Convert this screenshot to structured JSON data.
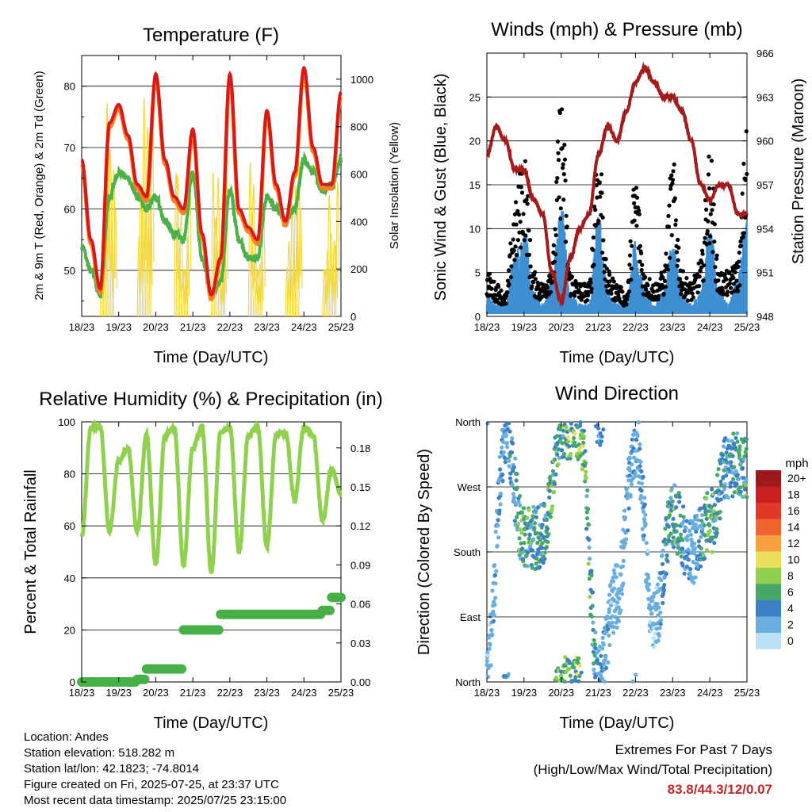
{
  "colors": {
    "temp_2m": "#d7191c",
    "temp_9m": "#f4821f",
    "dewpoint": "#4cb148",
    "solar": "#f2d843",
    "gust": "#000000",
    "sonic_wind": "#3f8fd2",
    "pressure": "#a31c1c",
    "rh": "#8fd14f",
    "precip": "#47b047"
  },
  "x_ticks": [
    "18/23",
    "19/23",
    "20/23",
    "21/23",
    "22/23",
    "23/23",
    "24/23",
    "25/23"
  ],
  "panels": {
    "temperature": {
      "title": "Temperature (F)",
      "xlabel": "Time (Day/UTC)",
      "ylabel_left": "2m & 9m T (Red, Orange) & 2m Td (Green)",
      "ylabel_right": "Solar Insolation (Yellow)",
      "left_ticks": [
        "50",
        "60",
        "70",
        "80"
      ],
      "right_ticks": [
        "0",
        "200",
        "400",
        "600",
        "800",
        "1000"
      ]
    },
    "winds": {
      "title": "Winds (mph) & Pressure (mb)",
      "xlabel": "Time (Day/UTC)",
      "ylabel_left": "Sonic Wind & Gust (Blue, Black)",
      "ylabel_right": "Station Pressure (Maroon)",
      "left_ticks": [
        "0",
        "5",
        "10",
        "15",
        "20",
        "25"
      ],
      "right_ticks": [
        "948",
        "951",
        "954",
        "957",
        "960",
        "963",
        "966"
      ]
    },
    "humidity": {
      "title": "Relative Humidity (%) & Precipitation (in)",
      "xlabel": "Time (Day/UTC)",
      "ylabel_left": "Percent & Total Rainfall",
      "left_ticks": [
        "0",
        "20",
        "40",
        "60",
        "80",
        "100"
      ],
      "right_ticks": [
        "0.00",
        "0.03",
        "0.06",
        "0.09",
        "0.12",
        "0.15",
        "0.18"
      ]
    },
    "direction": {
      "title": "Wind Direction",
      "xlabel": "Time (Day/UTC)",
      "ylabel_left": "Direction (Colored By Speed)",
      "left_ticks": [
        "North",
        "East",
        "South",
        "West",
        "North"
      ],
      "colorbar_title": "mph",
      "colorbar_labels": [
        "20+",
        "18",
        "16",
        "14",
        "12",
        "10",
        "8",
        "6",
        "4",
        "2",
        "0"
      ],
      "colorbar_colors": [
        "#9e1a1a",
        "#c8201e",
        "#e2382a",
        "#f0652e",
        "#f8a040",
        "#ece05a",
        "#8fd14f",
        "#46a866",
        "#3b80c4",
        "#6aaee0",
        "#b9e0f4"
      ]
    }
  },
  "info": {
    "location": "Location: Andes",
    "elevation": "Station elevation: 518.282 m",
    "latlon": "Station lat/lon: 42.1823; -74.8014",
    "created": "Figure created on Fri, 2025-07-25, at 23:37 UTC",
    "recent": "Most recent data timestamp: 2025/07/25 23:15:00"
  },
  "extremes": {
    "title": "Extremes For Past 7 Days",
    "subtitle": "(High/Low/Max Wind/Total Precipitation)",
    "values": "83.8/44.3/12/0.07"
  },
  "chart_data": [
    {
      "type": "line",
      "x": [
        0,
        0.25,
        0.5,
        0.75,
        1,
        1.25,
        1.5,
        1.75,
        2,
        2.25,
        2.5,
        2.75,
        3,
        3.25,
        3.5,
        3.75,
        4,
        4.25,
        4.5,
        4.75,
        5,
        5.25,
        5.5,
        5.75,
        6,
        6.25,
        6.5,
        6.75,
        7
      ],
      "xlim": [
        0,
        7
      ],
      "ylim": [
        42.5,
        85
      ],
      "y2lim": [
        0,
        1100
      ],
      "series": [
        {
          "name": "2m T",
          "values": [
            68,
            55,
            47,
            74,
            77,
            72,
            64,
            62,
            82,
            68,
            62,
            60,
            73,
            56,
            46,
            52,
            82,
            60,
            57,
            55,
            76,
            64,
            58,
            66,
            83,
            70,
            64,
            64,
            79
          ]
        },
        {
          "name": "2m Td",
          "values": [
            54,
            50,
            46,
            62,
            66,
            65,
            62,
            60,
            62,
            58,
            56,
            55,
            66,
            52,
            46,
            48,
            63,
            55,
            52,
            52,
            62,
            60,
            58,
            60,
            68,
            66,
            63,
            64,
            68
          ]
        },
        {
          "name": "Solar",
          "values": [
            0,
            0,
            0,
            850,
            400,
            0,
            0,
            1000,
            900,
            0,
            0,
            0,
            950,
            0,
            0,
            0,
            1050,
            0,
            0,
            0,
            800,
            0,
            0,
            600,
            850,
            0,
            0,
            500,
            700
          ]
        }
      ]
    },
    {
      "type": "line",
      "x": [
        0,
        0.25,
        0.5,
        0.75,
        1,
        1.25,
        1.5,
        1.75,
        2,
        2.25,
        2.5,
        2.75,
        3,
        3.25,
        3.5,
        3.75,
        4,
        4.25,
        4.5,
        4.75,
        5,
        5.25,
        5.5,
        5.75,
        6,
        6.25,
        6.5,
        6.75,
        7
      ],
      "xlim": [
        0,
        7
      ],
      "ylim": [
        0,
        30
      ],
      "y2lim": [
        948,
        966
      ],
      "series": [
        {
          "name": "Gust",
          "values": [
            4,
            3,
            2,
            10,
            15,
            4,
            3,
            5,
            20,
            4,
            3,
            3,
            17,
            4,
            3,
            2,
            13,
            4,
            3,
            4,
            14,
            4,
            3,
            5,
            15,
            4,
            4,
            5,
            17
          ]
        },
        {
          "name": "Sonic Wind",
          "values": [
            2,
            1,
            1,
            5,
            7,
            2,
            1,
            3,
            9,
            2,
            1,
            1,
            8,
            2,
            1,
            1,
            6,
            2,
            1,
            2,
            6,
            2,
            1,
            2,
            7,
            2,
            1,
            3,
            8
          ]
        },
        {
          "name": "Pressure",
          "values": [
            959,
            961,
            960,
            958,
            958,
            956,
            955,
            951,
            949,
            952,
            954,
            955,
            959,
            961,
            960,
            962,
            964,
            965,
            964,
            963,
            963,
            962,
            960,
            957,
            956,
            957,
            957,
            955,
            955
          ]
        }
      ]
    },
    {
      "type": "line",
      "x": [
        0,
        0.25,
        0.5,
        0.75,
        1,
        1.25,
        1.5,
        1.75,
        2,
        2.25,
        2.5,
        2.75,
        3,
        3.25,
        3.5,
        3.75,
        4,
        4.25,
        4.5,
        4.75,
        5,
        5.25,
        5.5,
        5.75,
        6,
        6.25,
        6.5,
        6.75,
        7
      ],
      "xlim": [
        0,
        7
      ],
      "ylim": [
        0,
        100
      ],
      "y2lim": [
        0,
        0.2
      ],
      "series": [
        {
          "name": "RH",
          "values": [
            56,
            98,
            98,
            58,
            85,
            90,
            58,
            95,
            45,
            95,
            98,
            45,
            90,
            98,
            42,
            96,
            98,
            50,
            95,
            98,
            52,
            95,
            96,
            70,
            98,
            95,
            62,
            82,
            72
          ]
        },
        {
          "name": "Precip",
          "values": [
            0,
            0,
            0,
            0,
            0,
            0,
            0.002,
            0.01,
            0.01,
            0.01,
            0.01,
            0.04,
            0.04,
            0.04,
            0.04,
            0.052,
            0.052,
            0.052,
            0.052,
            0.052,
            0.052,
            0.052,
            0.052,
            0.052,
            0.052,
            0.052,
            0.055,
            0.065,
            0.065
          ]
        }
      ]
    },
    {
      "type": "scatter",
      "x": [
        0,
        0.5,
        1,
        1.5,
        2,
        2.5,
        3,
        3.5,
        4,
        4.5,
        5,
        5.5,
        6,
        6.5,
        7
      ],
      "xlim": [
        0,
        7
      ],
      "ylim": [
        0,
        360
      ],
      "series": [
        {
          "name": "Direction",
          "values": [
            20,
            340,
            200,
            200,
            355,
            350,
            10,
            120,
            330,
            80,
            230,
            180,
            220,
            300,
            300
          ]
        },
        {
          "name": "Speed",
          "values": [
            2,
            4,
            6,
            5,
            7,
            8,
            4,
            2,
            3,
            2,
            6,
            3,
            7,
            4,
            6
          ]
        }
      ]
    }
  ]
}
